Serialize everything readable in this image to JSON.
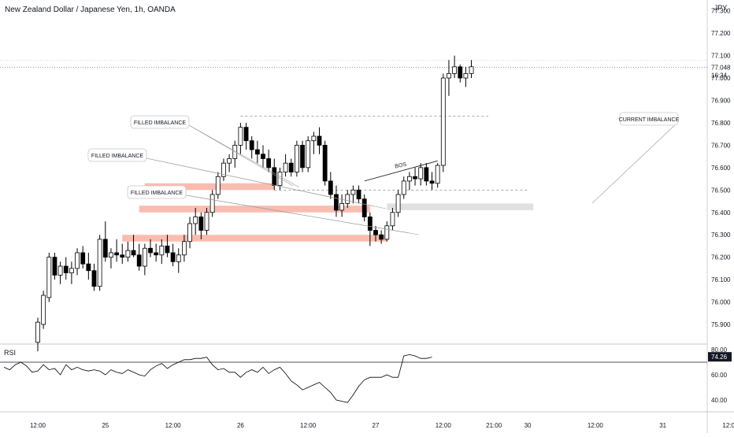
{
  "header": {
    "title": "New Zealand Dollar / Japanese Yen, 1h, OANDA"
  },
  "price_axis": {
    "currency": "JPY",
    "ticks": [
      "77.300",
      "77.200",
      "77.100",
      "77.000",
      "76.900",
      "76.800",
      "76.700",
      "76.600",
      "76.500",
      "76.400",
      "76.300",
      "76.200",
      "76.100",
      "76.000",
      "75.900"
    ],
    "last_price": "77.048",
    "countdown": "16:34"
  },
  "time_axis": {
    "ticks": [
      {
        "label": "12:00",
        "bar": 0
      },
      {
        "label": "25",
        "bar": 12
      },
      {
        "label": "12:00",
        "bar": 24
      },
      {
        "label": "26",
        "bar": 36
      },
      {
        "label": "12:00",
        "bar": 48
      },
      {
        "label": "27",
        "bar": 60
      },
      {
        "label": "12:00",
        "bar": 72
      },
      {
        "label": "21:00",
        "bar": 81
      },
      {
        "label": "30",
        "bar": 87
      },
      {
        "label": "12:00",
        "bar": 99
      },
      {
        "label": "31",
        "bar": 111
      },
      {
        "label": "12:00",
        "bar": 123
      }
    ]
  },
  "rsi": {
    "label": "RSI",
    "ticks": [
      "80.00",
      "60.00",
      "40.00"
    ],
    "level": 70,
    "last_value": "74.26"
  },
  "annotations": {
    "filled_1": "FILLED IMBALANCE",
    "filled_2": "FILLED IMBALANCE",
    "filled_3": "FILLED IMBALANCE",
    "current": "CURRENT IMBALANCE",
    "bos": "BOS"
  },
  "colors": {
    "up": "#ffffff",
    "down": "#000000",
    "wick": "#000000",
    "filled_zone": "#fbbcb0",
    "current_zone": "#e0e0e0",
    "last_price_line": "#2962ff",
    "rsi_line": "#000000"
  },
  "chart_data": {
    "type": "candlestick",
    "symbol": "NZDJPY",
    "interval": "1h",
    "ylim": [
      75.85,
      77.32
    ],
    "ohlc": [
      [
        75.82,
        75.93,
        75.78,
        75.91
      ],
      [
        75.9,
        76.05,
        75.88,
        76.03
      ],
      [
        76.02,
        76.22,
        76.0,
        76.2
      ],
      [
        76.2,
        76.22,
        76.1,
        76.12
      ],
      [
        76.12,
        76.18,
        76.08,
        76.16
      ],
      [
        76.16,
        76.2,
        76.1,
        76.13
      ],
      [
        76.13,
        76.18,
        76.08,
        76.15
      ],
      [
        76.15,
        76.24,
        76.12,
        76.22
      ],
      [
        76.22,
        76.25,
        76.15,
        76.17
      ],
      [
        76.17,
        76.22,
        76.1,
        76.14
      ],
      [
        76.14,
        76.17,
        76.05,
        76.07
      ],
      [
        76.07,
        76.3,
        76.05,
        76.28
      ],
      [
        76.28,
        76.36,
        76.18,
        76.2
      ],
      [
        76.2,
        76.24,
        76.15,
        76.22
      ],
      [
        76.22,
        76.28,
        76.18,
        76.21
      ],
      [
        76.21,
        76.26,
        76.17,
        76.2
      ],
      [
        76.2,
        76.27,
        76.18,
        76.23
      ],
      [
        76.23,
        76.3,
        76.2,
        76.21
      ],
      [
        76.21,
        76.26,
        76.14,
        76.16
      ],
      [
        76.16,
        76.26,
        76.12,
        76.24
      ],
      [
        76.24,
        76.28,
        76.2,
        76.22
      ],
      [
        76.22,
        76.26,
        76.18,
        76.21
      ],
      [
        76.21,
        76.28,
        76.17,
        76.25
      ],
      [
        76.25,
        76.3,
        76.2,
        76.22
      ],
      [
        76.22,
        76.26,
        76.16,
        76.18
      ],
      [
        76.18,
        76.24,
        76.13,
        76.21
      ],
      [
        76.21,
        76.3,
        76.18,
        76.27
      ],
      [
        76.27,
        76.38,
        76.24,
        76.35
      ],
      [
        76.35,
        76.42,
        76.3,
        76.38
      ],
      [
        76.38,
        76.4,
        76.28,
        76.32
      ],
      [
        76.32,
        76.42,
        76.3,
        76.4
      ],
      [
        76.4,
        76.5,
        76.38,
        76.48
      ],
      [
        76.48,
        76.58,
        76.46,
        76.56
      ],
      [
        76.56,
        76.64,
        76.54,
        76.62
      ],
      [
        76.62,
        76.66,
        76.58,
        76.64
      ],
      [
        76.64,
        76.72,
        76.6,
        76.7
      ],
      [
        76.7,
        76.8,
        76.66,
        76.78
      ],
      [
        76.78,
        76.8,
        76.68,
        76.72
      ],
      [
        76.72,
        76.74,
        76.64,
        76.68
      ],
      [
        76.68,
        76.72,
        76.62,
        76.66
      ],
      [
        76.66,
        76.7,
        76.6,
        76.64
      ],
      [
        76.64,
        76.68,
        76.58,
        76.6
      ],
      [
        76.6,
        76.64,
        76.5,
        76.52
      ],
      [
        76.52,
        76.6,
        76.5,
        76.58
      ],
      [
        76.58,
        76.66,
        76.56,
        76.62
      ],
      [
        76.62,
        76.64,
        76.56,
        76.58
      ],
      [
        76.58,
        76.72,
        76.56,
        76.7
      ],
      [
        76.7,
        76.72,
        76.58,
        76.6
      ],
      [
        76.6,
        76.74,
        76.58,
        76.72
      ],
      [
        76.72,
        76.76,
        76.66,
        76.74
      ],
      [
        76.74,
        76.78,
        76.66,
        76.7
      ],
      [
        76.7,
        76.72,
        76.52,
        76.54
      ],
      [
        76.54,
        76.58,
        76.46,
        76.48
      ],
      [
        76.48,
        76.52,
        76.38,
        76.41
      ],
      [
        76.41,
        76.48,
        76.38,
        76.44
      ],
      [
        76.44,
        76.5,
        76.42,
        76.48
      ],
      [
        76.48,
        76.52,
        76.44,
        76.5
      ],
      [
        76.5,
        76.52,
        76.44,
        76.46
      ],
      [
        76.46,
        76.48,
        76.36,
        76.38
      ],
      [
        76.38,
        76.4,
        76.25,
        76.32
      ],
      [
        76.32,
        76.34,
        76.27,
        76.3
      ],
      [
        76.3,
        76.32,
        76.26,
        76.28
      ],
      [
        76.28,
        76.36,
        76.27,
        76.34
      ],
      [
        76.34,
        76.42,
        76.32,
        76.4
      ],
      [
        76.4,
        76.5,
        76.38,
        76.48
      ],
      [
        76.48,
        76.56,
        76.46,
        76.54
      ],
      [
        76.54,
        76.58,
        76.5,
        76.56
      ],
      [
        76.56,
        76.6,
        76.52,
        76.55
      ],
      [
        76.55,
        76.62,
        76.52,
        76.6
      ],
      [
        76.6,
        76.62,
        76.52,
        76.54
      ],
      [
        76.54,
        76.58,
        76.5,
        76.53
      ],
      [
        76.53,
        76.62,
        76.51,
        76.61
      ],
      [
        76.61,
        77.02,
        76.58,
        77.0
      ],
      [
        77.0,
        77.08,
        76.92,
        77.02
      ],
      [
        77.02,
        77.1,
        77.0,
        77.05
      ],
      [
        77.05,
        77.06,
        76.98,
        77.0
      ],
      [
        77.0,
        77.05,
        76.96,
        77.02
      ],
      [
        77.02,
        77.08,
        77.0,
        77.05
      ]
    ],
    "rsi_values": [
      66,
      64,
      68,
      70,
      67,
      62,
      63,
      68,
      64,
      65,
      60,
      68,
      64,
      66,
      64,
      63,
      64,
      63,
      60,
      64,
      62,
      61,
      64,
      62,
      60,
      59,
      64,
      67,
      69,
      65,
      68,
      70,
      72,
      72,
      73,
      73,
      74,
      68,
      64,
      65,
      62,
      62,
      58,
      62,
      64,
      62,
      66,
      61,
      64,
      66,
      61,
      55,
      52,
      48,
      50,
      52,
      54,
      50,
      46,
      40,
      39,
      38,
      44,
      51,
      56,
      58,
      58,
      58,
      60,
      58,
      58,
      75,
      76,
      75,
      73,
      73,
      74
    ],
    "zones": [
      {
        "type": "filled",
        "from_bar": 19,
        "to_bar": 42,
        "low": 76.5,
        "high": 76.53
      },
      {
        "type": "filled",
        "from_bar": 18,
        "to_bar": 59,
        "low": 76.4,
        "high": 76.43
      },
      {
        "type": "filled",
        "from_bar": 15,
        "to_bar": 62,
        "low": 76.27,
        "high": 76.3
      },
      {
        "type": "current",
        "from_bar": 62,
        "to_bar": 88,
        "low": 76.41,
        "high": 76.44
      }
    ],
    "lines": [
      {
        "type": "dashed",
        "from_bar": 36,
        "to_bar": 80,
        "price": 76.83
      },
      {
        "type": "dashed",
        "from_bar": 42,
        "to_bar": 87,
        "price": 76.5
      },
      {
        "type": "bos",
        "from_bar": 58,
        "to_bar": 71,
        "price_from": 76.54,
        "price_to": 76.63
      }
    ]
  }
}
